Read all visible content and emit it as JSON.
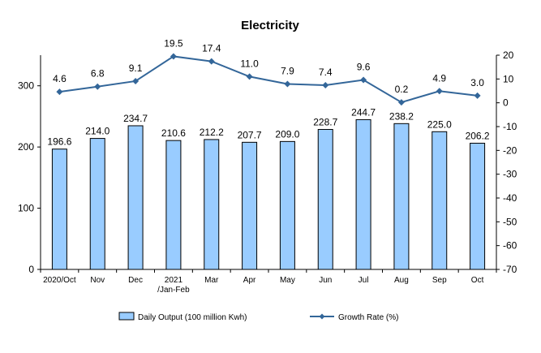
{
  "chart_data": {
    "type": "bar+line",
    "title": "Electricity",
    "categories": [
      [
        "2020/Oct"
      ],
      [
        "Nov"
      ],
      [
        "Dec"
      ],
      [
        "2021",
        "/Jan-Feb"
      ],
      [
        "Mar"
      ],
      [
        "Apr"
      ],
      [
        "May"
      ],
      [
        "Jun"
      ],
      [
        "Jul"
      ],
      [
        "Aug"
      ],
      [
        "Sep"
      ],
      [
        "Oct"
      ]
    ],
    "series": [
      {
        "name": "Daily Output (100 million Kwh)",
        "type": "bar",
        "axis": "left",
        "values": [
          196.6,
          214.0,
          234.7,
          210.6,
          212.2,
          207.7,
          209.0,
          228.7,
          244.7,
          238.2,
          225.0,
          206.2
        ],
        "labels": [
          "196.6",
          "214.0",
          "234.7",
          "210.6",
          "212.2",
          "207.7",
          "209.0",
          "228.7",
          "244.7",
          "238.2",
          "225.0",
          "206.2"
        ],
        "color": "#99ccff"
      },
      {
        "name": "Growth Rate (%)",
        "type": "line",
        "axis": "right",
        "values": [
          4.6,
          6.8,
          9.1,
          19.5,
          17.4,
          11.0,
          7.9,
          7.4,
          9.6,
          0.2,
          4.9,
          3.0
        ],
        "labels": [
          "4.6",
          "6.8",
          "9.1",
          "19.5",
          "17.4",
          "11.0",
          "7.9",
          "7.4",
          "9.6",
          "0.2",
          "4.9",
          "3.0"
        ],
        "color": "#336699"
      }
    ],
    "y_left": {
      "min": 0,
      "max": 350,
      "ticks": [
        0,
        100,
        200,
        300
      ]
    },
    "y_right": {
      "min": -70,
      "max": 20,
      "ticks": [
        20,
        10,
        0,
        -10,
        -20,
        -30,
        -40,
        -50,
        -60,
        -70
      ]
    },
    "grid": false,
    "legend": "bottom"
  }
}
